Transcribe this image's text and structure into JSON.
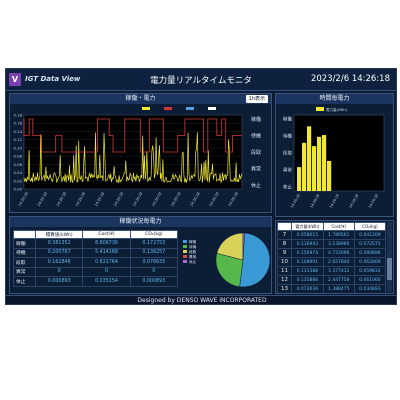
{
  "header": {
    "logo_letter": "V",
    "app_name": "IGT Data View",
    "title": "電力量リアルタイムモニタ",
    "datetime": "2023/2/6 14:26:18"
  },
  "power_panel": {
    "title": "稼働・電力",
    "button_label": "1h表示",
    "legend": [
      "",
      "",
      "",
      ""
    ],
    "state_labels": [
      "稼働",
      "待機",
      "段取",
      "異常",
      "休止"
    ],
    "y_ticks": [
      "0.18",
      "0.16",
      "0.14",
      "0.12",
      "0.10",
      "0.08",
      "0.06",
      "0.04",
      "0.02",
      "0.00"
    ],
    "x_ticks": [
      "14:26:18",
      "14:26:18",
      "14:26:18",
      "14:26:18",
      "14:26:18",
      "14:26:18",
      "14:26:18",
      "14:26:18",
      "14:26:18",
      "14:26:18",
      "14:26:18",
      "14:26:18"
    ],
    "colors": {
      "power": "#f0e832",
      "state": "#d23a3a"
    }
  },
  "hourly_panel": {
    "title": "時間毎電力",
    "legend_label": "電力量(kWh)",
    "y_ticks": [
      "稼働",
      "待機",
      "段取",
      "異常",
      "休止"
    ],
    "x_ticks": [
      "14:26:18",
      "14:26:18",
      "14:26:18",
      "14:26:18",
      "14:26:18"
    ],
    "color": "#f0e832"
  },
  "status_panel": {
    "title": "稼働状況毎電力",
    "headers": [
      "",
      "積算値(kWh)",
      "Cost(¥)",
      "CO₂(kg)"
    ],
    "rows": [
      {
        "label": "稼働",
        "kwh": "0.381352",
        "cost": "8.806736",
        "co2": "0.172753"
      },
      {
        "label": "待機",
        "kwh": "0.200767",
        "cost": "5.414168",
        "co2": "0.136257"
      },
      {
        "label": "段取",
        "kwh": "0.162848",
        "cost": "0.821764",
        "co2": "0.076635"
      },
      {
        "label": "異常",
        "kwh": "0",
        "cost": "0",
        "co2": "0"
      },
      {
        "label": "休止",
        "kwh": "0.000893",
        "cost": "0.035154",
        "co2": "0.000893"
      }
    ],
    "pie_legend": [
      "稼働",
      "待機",
      "段取",
      "異常",
      "休止"
    ],
    "pie_shares": [
      0.52,
      0.27,
      0.21,
      0.0,
      0.01
    ],
    "pie_colors": [
      "#3a9ad6",
      "#56b84a",
      "#d8d15a",
      "#d24a4a",
      "#9a6ad0"
    ]
  },
  "hour_table": {
    "headers": [
      "",
      "電力量(kWh)",
      "Cost(¥)",
      "CO₂(kg)"
    ],
    "rows": [
      {
        "hour": "7",
        "kwh": "0.058015",
        "cost": "1.789561",
        "co2": "0.041209"
      },
      {
        "hour": "8",
        "kwh": "0.116943",
        "cost": "3.138980",
        "co2": "0.072575"
      },
      {
        "hour": "9",
        "kwh": "0.156974",
        "cost": "4.733096",
        "co2": "0.080896"
      },
      {
        "hour": "10",
        "kwh": "0.108991",
        "cost": "2.657840",
        "co2": "0.062809"
      },
      {
        "hour": "11",
        "kwh": "0.131588",
        "cost": "3.377412",
        "co2": "0.059832"
      },
      {
        "hour": "12",
        "kwh": "0.135886",
        "cost": "2.447758",
        "co2": "0.061060"
      },
      {
        "hour": "13",
        "kwh": "0.073036",
        "cost": "1.388475",
        "co2": "0.034893"
      }
    ]
  },
  "footer": {
    "text": "Designed by DENSO WAVE INCORPORATED"
  }
}
